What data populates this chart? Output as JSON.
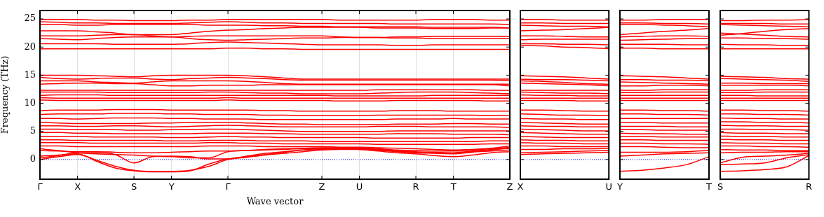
{
  "chart_data": [
    {
      "type": "line",
      "xlabel": "Wave vector",
      "ylabel": "Frequency (THz)",
      "grid": "x",
      "marker": "none",
      "line_style": "solid",
      "categories": [
        "Γ",
        null,
        "X",
        null,
        null,
        "S",
        null,
        "Y",
        null,
        null,
        "Γ",
        null,
        null,
        null,
        null,
        "Z",
        null,
        "U",
        null,
        null,
        "R",
        null,
        "T",
        null,
        null,
        "Z"
      ],
      "ylim": [
        -3.5,
        26.5
      ],
      "yticks": [
        0,
        5,
        10,
        15,
        20,
        25
      ],
      "ref_lines": [
        {
          "axis": "y",
          "value": 0,
          "color": "#0000ff",
          "line_style": "dotted"
        }
      ],
      "series": [
        {
          "color": "#ff0000",
          "values": [
            24.9,
            24.9,
            24.9,
            24.8,
            24.8,
            24.7,
            24.7,
            24.7,
            24.8,
            24.8,
            24.9,
            24.9,
            24.9,
            24.9,
            24.9,
            24.9,
            24.8,
            24.8,
            24.8,
            24.8,
            24.8,
            24.9,
            24.9,
            24.9,
            24.8,
            24.8
          ]
        },
        {
          "color": "#ff0000",
          "values": [
            24.5,
            24.4,
            24.3,
            24.3,
            24.2,
            24.2,
            24.2,
            24.2,
            24.3,
            24.4,
            24.5,
            24.4,
            24.3,
            24.3,
            24.2,
            24.2,
            24.2,
            24.2,
            24.2,
            24.1,
            24.1,
            24.1,
            24.1,
            24.1,
            24.1,
            24.0
          ]
        },
        {
          "color": "#ff0000",
          "values": [
            24.0,
            24.0,
            23.9,
            23.9,
            24.0,
            24.0,
            24.0,
            24.0,
            24.0,
            23.9,
            23.9,
            23.9,
            23.8,
            23.8,
            23.7,
            23.7,
            23.6,
            23.6,
            23.6,
            23.6,
            23.6,
            23.5,
            23.5,
            23.5,
            23.5,
            23.4
          ]
        },
        {
          "color": "#ff0000",
          "values": [
            22.9,
            22.9,
            22.9,
            22.7,
            22.5,
            22.2,
            22.2,
            22.2,
            22.5,
            22.8,
            23.0,
            23.1,
            23.3,
            23.4,
            23.5,
            23.5,
            23.5,
            23.5,
            23.4,
            23.4,
            23.4,
            23.3,
            23.3,
            23.3,
            23.4,
            23.4
          ]
        },
        {
          "color": "#ff0000",
          "values": [
            22.0,
            22.0,
            22.0,
            22.1,
            22.2,
            22.2,
            22.0,
            21.8,
            21.9,
            22.0,
            22.0,
            22.0,
            22.0,
            22.0,
            22.0,
            22.0,
            21.8,
            21.7,
            21.7,
            21.8,
            21.8,
            21.9,
            21.9,
            21.9,
            21.9,
            21.9
          ]
        },
        {
          "color": "#ff0000",
          "values": [
            21.5,
            21.4,
            21.3,
            21.5,
            21.7,
            21.8,
            21.8,
            21.8,
            21.5,
            21.3,
            21.2,
            21.3,
            21.4,
            21.5,
            21.6,
            21.6,
            21.7,
            21.7,
            21.7,
            21.6,
            21.6,
            21.5,
            21.5,
            21.5,
            21.5,
            21.5
          ]
        },
        {
          "color": "#ff0000",
          "values": [
            20.6,
            20.6,
            20.6,
            20.6,
            20.5,
            20.5,
            20.5,
            20.5,
            20.6,
            20.8,
            20.9,
            20.8,
            20.7,
            20.6,
            20.5,
            20.4,
            20.4,
            20.4,
            20.4,
            20.3,
            20.3,
            20.4,
            20.4,
            20.4,
            20.4,
            20.4
          ]
        },
        {
          "color": "#ff0000",
          "values": [
            19.7,
            19.7,
            19.7,
            19.7,
            19.7,
            19.7,
            19.7,
            19.7,
            19.7,
            19.7,
            19.8,
            19.8,
            19.7,
            19.7,
            19.6,
            19.6,
            19.6,
            19.6,
            19.6,
            19.6,
            19.6,
            19.6,
            19.6,
            19.6,
            19.6,
            19.6
          ]
        },
        {
          "color": "#ff0000",
          "values": [
            15.0,
            15.0,
            15.0,
            14.9,
            14.8,
            14.7,
            14.9,
            15.0,
            15.0,
            15.0,
            15.0,
            14.9,
            14.7,
            14.5,
            14.3,
            14.3,
            14.3,
            14.3,
            14.3,
            14.3,
            14.3,
            14.3,
            14.3,
            14.3,
            14.3,
            14.3
          ]
        },
        {
          "color": "#ff0000",
          "values": [
            14.6,
            14.4,
            14.3,
            14.4,
            14.5,
            14.5,
            14.3,
            14.2,
            14.4,
            14.5,
            14.6,
            14.5,
            14.4,
            14.2,
            14.1,
            14.1,
            14.1,
            14.1,
            14.1,
            14.1,
            14.1,
            14.1,
            14.1,
            14.1,
            14.1,
            14.0
          ]
        },
        {
          "color": "#ff0000",
          "values": [
            14.0,
            14.0,
            14.0,
            13.8,
            13.7,
            13.6,
            13.8,
            14.0,
            14.0,
            14.0,
            14.0,
            13.9,
            13.7,
            13.5,
            13.4,
            13.4,
            13.4,
            13.4,
            13.4,
            13.4,
            13.4,
            13.4,
            13.4,
            13.4,
            13.4,
            13.4
          ]
        },
        {
          "color": "#ff0000",
          "values": [
            13.4,
            13.5,
            13.6,
            13.6,
            13.5,
            13.5,
            13.3,
            13.1,
            13.1,
            13.2,
            13.2,
            13.2,
            13.3,
            13.3,
            13.3,
            13.3,
            13.3,
            13.3,
            13.3,
            13.3,
            13.3,
            13.3,
            13.3,
            13.3,
            13.3,
            13.1
          ]
        },
        {
          "color": "#ff0000",
          "values": [
            12.3,
            12.3,
            12.3,
            12.3,
            12.3,
            12.3,
            12.3,
            12.3,
            12.3,
            12.3,
            12.3,
            12.3,
            12.3,
            12.3,
            12.3,
            12.3,
            12.3,
            12.3,
            12.4,
            12.4,
            12.4,
            12.4,
            12.4,
            12.4,
            12.3,
            12.3
          ]
        },
        {
          "color": "#ff0000",
          "values": [
            12.0,
            12.0,
            12.0,
            12.0,
            11.9,
            11.9,
            11.9,
            11.9,
            11.9,
            12.0,
            12.0,
            11.9,
            11.8,
            11.8,
            11.7,
            11.7,
            11.7,
            11.7,
            11.8,
            11.9,
            12.0,
            12.0,
            12.0,
            11.9,
            11.8,
            11.7
          ]
        },
        {
          "color": "#ff0000",
          "values": [
            11.4,
            11.5,
            11.5,
            11.5,
            11.4,
            11.4,
            11.4,
            11.4,
            11.4,
            11.4,
            11.4,
            11.4,
            11.4,
            11.4,
            11.4,
            11.4,
            11.3,
            11.3,
            11.3,
            11.3,
            11.3,
            11.4,
            11.4,
            11.4,
            11.4,
            11.4
          ]
        },
        {
          "color": "#ff0000",
          "values": [
            11.0,
            10.9,
            10.9,
            10.9,
            10.9,
            10.9,
            10.9,
            10.9,
            10.9,
            10.9,
            11.0,
            10.9,
            10.9,
            10.9,
            10.9,
            10.9,
            10.9,
            10.9,
            10.9,
            10.9,
            10.9,
            10.9,
            10.9,
            10.9,
            10.9,
            10.9
          ]
        },
        {
          "color": "#ff0000",
          "values": [
            10.6,
            10.5,
            10.5,
            10.5,
            10.5,
            10.5,
            10.5,
            10.5,
            10.5,
            10.5,
            10.6,
            10.5,
            10.5,
            10.5,
            10.5,
            10.5,
            10.4,
            10.4,
            10.4,
            10.5,
            10.5,
            10.5,
            10.5,
            10.5,
            10.4,
            10.4
          ]
        },
        {
          "color": "#ff0000",
          "values": [
            8.7,
            8.8,
            8.8,
            8.8,
            8.9,
            8.9,
            8.9,
            8.8,
            8.8,
            8.8,
            8.8,
            8.8,
            8.7,
            8.7,
            8.6,
            8.6,
            8.6,
            8.6,
            8.6,
            8.7,
            8.7,
            8.7,
            8.6,
            8.6,
            8.6,
            8.6
          ]
        },
        {
          "color": "#ff0000",
          "values": [
            8.0,
            8.1,
            8.1,
            8.1,
            8.2,
            8.2,
            8.2,
            8.1,
            8.1,
            8.0,
            8.0,
            8.0,
            7.9,
            7.9,
            7.8,
            7.8,
            7.8,
            7.8,
            7.9,
            7.9,
            7.9,
            7.9,
            7.9,
            7.9,
            7.8,
            7.8
          ]
        },
        {
          "color": "#ff0000",
          "values": [
            7.3,
            7.3,
            7.2,
            7.3,
            7.4,
            7.4,
            7.4,
            7.3,
            7.3,
            7.2,
            7.2,
            7.2,
            7.1,
            7.1,
            7.1,
            7.1,
            7.1,
            7.1,
            7.1,
            7.2,
            7.2,
            7.2,
            7.3,
            7.2,
            7.2,
            7.2
          ]
        },
        {
          "color": "#ff0000",
          "values": [
            6.6,
            6.5,
            6.4,
            6.4,
            6.4,
            6.4,
            6.5,
            6.5,
            6.6,
            6.6,
            6.6,
            6.5,
            6.4,
            6.3,
            6.3,
            6.2,
            6.2,
            6.2,
            6.2,
            6.3,
            6.3,
            6.3,
            6.4,
            6.4,
            6.3,
            6.3
          ]
        },
        {
          "color": "#ff0000",
          "values": [
            6.0,
            6.0,
            5.9,
            5.9,
            6.0,
            6.0,
            5.9,
            5.8,
            5.9,
            6.0,
            6.1,
            6.0,
            5.9,
            5.8,
            5.8,
            5.8,
            5.8,
            5.8,
            5.9,
            5.9,
            5.9,
            5.8,
            5.8,
            5.8,
            5.8,
            5.7
          ]
        },
        {
          "color": "#ff0000",
          "values": [
            5.4,
            5.4,
            5.3,
            5.3,
            5.3,
            5.2,
            5.2,
            5.3,
            5.3,
            5.4,
            5.4,
            5.3,
            5.2,
            5.1,
            5.0,
            5.0,
            5.0,
            5.0,
            5.0,
            5.1,
            5.1,
            5.1,
            5.1,
            5.1,
            5.1,
            5.1
          ]
        },
        {
          "color": "#ff0000",
          "values": [
            4.8,
            4.8,
            4.7,
            4.7,
            4.6,
            4.6,
            4.6,
            4.6,
            4.6,
            4.7,
            4.7,
            4.7,
            4.6,
            4.6,
            4.5,
            4.5,
            4.5,
            4.5,
            4.5,
            4.6,
            4.6,
            4.6,
            4.5,
            4.5,
            4.5,
            4.4
          ]
        },
        {
          "color": "#ff0000",
          "values": [
            4.1,
            4.1,
            4.1,
            4.0,
            4.0,
            4.0,
            4.0,
            3.9,
            3.9,
            4.0,
            4.1,
            4.0,
            4.0,
            3.9,
            3.9,
            3.9,
            3.9,
            3.9,
            3.8,
            3.8,
            3.8,
            3.8,
            3.8,
            3.9,
            3.9,
            3.9
          ]
        },
        {
          "color": "#ff0000",
          "values": [
            3.5,
            3.5,
            3.4,
            3.4,
            3.4,
            3.4,
            3.4,
            3.3,
            3.3,
            3.4,
            3.4,
            3.4,
            3.3,
            3.3,
            3.3,
            3.2,
            3.2,
            3.2,
            3.2,
            3.2,
            3.2,
            3.2,
            3.2,
            3.2,
            3.3,
            3.3
          ]
        },
        {
          "color": "#ff0000",
          "values": [
            3.0,
            3.0,
            3.0,
            2.9,
            2.9,
            2.9,
            2.9,
            2.9,
            2.9,
            3.0,
            3.0,
            2.9,
            2.9,
            2.8,
            2.8,
            2.8,
            2.8,
            2.8,
            2.7,
            2.7,
            2.7,
            2.7,
            2.7,
            2.7,
            2.8,
            2.8
          ]
        },
        {
          "color": "#ff0000",
          "values": [
            2.4,
            2.4,
            2.3,
            2.3,
            2.3,
            2.3,
            2.3,
            2.3,
            2.3,
            2.4,
            2.4,
            2.4,
            2.3,
            2.3,
            2.3,
            2.3,
            2.2,
            2.2,
            2.1,
            2.0,
            1.9,
            1.8,
            1.7,
            1.8,
            2.0,
            2.4
          ]
        },
        {
          "color": "#ff0000",
          "values": [
            1.6,
            1.5,
            1.4,
            1.4,
            1.3,
            1.2,
            1.2,
            1.3,
            1.4,
            1.5,
            1.5,
            1.6,
            1.7,
            1.8,
            1.9,
            1.9,
            1.9,
            1.8,
            1.5,
            1.2,
            1.0,
            0.7,
            0.5,
            0.8,
            1.2,
            1.4
          ]
        },
        {
          "color": "#ff0000",
          "values": [
            0,
            0.5,
            0.9,
            -0.1,
            -1.2,
            -1.9,
            -2.1,
            -2.1,
            -1.9,
            -1.2,
            0,
            0.4,
            0.8,
            1.1,
            1.4,
            1.7,
            1.8,
            1.8,
            1.6,
            1.4,
            1.2,
            1.1,
            1.0,
            1.3,
            1.5,
            1.7
          ]
        },
        {
          "color": "#ff0000",
          "values": [
            0.3,
            0.7,
            1.2,
            1.2,
            0.9,
            -0.6,
            0.5,
            0.6,
            0.5,
            0.1,
            0.1,
            0.6,
            1.1,
            1.4,
            1.7,
            1.8,
            1.9,
            1.9,
            1.7,
            1.5,
            1.3,
            1.2,
            1.1,
            1.4,
            1.7,
            2.0
          ]
        },
        {
          "color": "#ff0000",
          "values": [
            0.6,
            0.8,
            1.0,
            -0.3,
            -1.5,
            -2.0,
            -2.2,
            -2.2,
            -2.0,
            -0.8,
            0.1,
            0.5,
            0.9,
            1.3,
            1.7,
            2.0,
            2.0,
            2.0,
            1.8,
            1.6,
            1.4,
            1.3,
            1.2,
            1.5,
            1.8,
            2.2
          ]
        },
        {
          "color": "#ff0000",
          "values": [
            1.9,
            1.6,
            1.2,
            1.0,
            0.9,
            0.8,
            0.6,
            0.5,
            0.3,
            0.3,
            1.4,
            1.6,
            1.8,
            1.9,
            2.0,
            2.1,
            2.1,
            2.1,
            1.9,
            1.7,
            1.6,
            1.5,
            1.5,
            1.7,
            1.9,
            2.0
          ]
        }
      ]
    },
    {
      "type": "line",
      "grid": false,
      "marker": "none",
      "line_style": "solid",
      "tick_labels": "x",
      "categories": [
        "X",
        null,
        null,
        null,
        "U"
      ],
      "ylim": [
        -3.5,
        26.5
      ],
      "yticks": [
        0,
        5,
        10,
        15,
        20,
        25
      ],
      "ref_lines": [
        {
          "axis": "y",
          "value": 0,
          "color": "#0000ff",
          "line_style": "dotted"
        }
      ],
      "series": [
        {
          "color": "#ff0000",
          "values": [
            24.9,
            24.9,
            24.8,
            24.8,
            24.8
          ]
        },
        {
          "color": "#ff0000",
          "values": [
            24.3,
            24.3,
            24.2,
            24.2,
            24.2
          ]
        },
        {
          "color": "#ff0000",
          "values": [
            23.9,
            23.8,
            23.7,
            23.7,
            23.6
          ]
        },
        {
          "color": "#ff0000",
          "values": [
            22.9,
            23.0,
            23.1,
            23.3,
            23.5
          ]
        },
        {
          "color": "#ff0000",
          "values": [
            22.0,
            22.0,
            21.9,
            21.8,
            21.8
          ]
        },
        {
          "color": "#ff0000",
          "values": [
            21.3,
            21.4,
            21.4,
            21.4,
            21.4
          ]
        },
        {
          "color": "#ff0000",
          "values": [
            20.6,
            20.6,
            20.5,
            20.5,
            20.4
          ]
        },
        {
          "color": "#ff0000",
          "values": [
            20.3,
            20.2,
            20.0,
            19.9,
            19.7
          ]
        },
        {
          "color": "#ff0000",
          "values": [
            14.9,
            14.8,
            14.7,
            14.5,
            14.3
          ]
        },
        {
          "color": "#ff0000",
          "values": [
            14.3,
            14.2,
            14.2,
            14.1,
            14.0
          ]
        },
        {
          "color": "#ff0000",
          "values": [
            14.0,
            13.9,
            13.7,
            13.5,
            13.4
          ]
        },
        {
          "color": "#ff0000",
          "values": [
            13.6,
            13.5,
            13.4,
            13.3,
            13.1
          ]
        },
        {
          "color": "#ff0000",
          "values": [
            12.3,
            12.3,
            12.3,
            12.3,
            12.3
          ]
        },
        {
          "color": "#ff0000",
          "values": [
            12.0,
            11.9,
            11.8,
            11.8,
            11.7
          ]
        },
        {
          "color": "#ff0000",
          "values": [
            11.5,
            11.4,
            11.4,
            11.3,
            11.3
          ]
        },
        {
          "color": "#ff0000",
          "values": [
            10.9,
            10.9,
            10.9,
            10.9,
            10.9
          ]
        },
        {
          "color": "#ff0000",
          "values": [
            10.5,
            10.5,
            10.5,
            10.4,
            10.4
          ]
        },
        {
          "color": "#ff0000",
          "values": [
            8.8,
            8.8,
            8.7,
            8.6,
            8.6
          ]
        },
        {
          "color": "#ff0000",
          "values": [
            8.1,
            8.0,
            7.9,
            7.9,
            7.8
          ]
        },
        {
          "color": "#ff0000",
          "values": [
            7.3,
            7.2,
            7.2,
            7.1,
            7.1
          ]
        },
        {
          "color": "#ff0000",
          "values": [
            6.6,
            6.5,
            6.4,
            6.3,
            6.3
          ]
        },
        {
          "color": "#ff0000",
          "values": [
            6.0,
            5.9,
            5.9,
            5.8,
            5.8
          ]
        },
        {
          "color": "#ff0000",
          "values": [
            5.4,
            5.3,
            5.2,
            5.1,
            5.1
          ]
        },
        {
          "color": "#ff0000",
          "values": [
            4.8,
            4.7,
            4.6,
            4.5,
            4.5
          ]
        },
        {
          "color": "#ff0000",
          "values": [
            4.1,
            4.0,
            3.9,
            3.9,
            3.9
          ]
        },
        {
          "color": "#ff0000",
          "values": [
            3.5,
            3.4,
            3.4,
            3.3,
            3.3
          ]
        },
        {
          "color": "#ff0000",
          "values": [
            3.0,
            2.9,
            2.9,
            2.8,
            2.8
          ]
        },
        {
          "color": "#ff0000",
          "values": [
            2.4,
            2.4,
            2.3,
            2.3,
            2.3
          ]
        },
        {
          "color": "#ff0000",
          "values": [
            1.8,
            1.8,
            1.9,
            1.9,
            2.0
          ]
        },
        {
          "color": "#ff0000",
          "values": [
            1.2,
            1.3,
            1.4,
            1.5,
            1.6
          ]
        },
        {
          "color": "#ff0000",
          "values": [
            0.9,
            1.0,
            1.1,
            1.2,
            1.3
          ]
        }
      ]
    },
    {
      "type": "line",
      "grid": false,
      "marker": "none",
      "line_style": "solid",
      "tick_labels": "x",
      "categories": [
        "Y",
        null,
        null,
        null,
        "T"
      ],
      "ylim": [
        -3.5,
        26.5
      ],
      "yticks": [
        0,
        5,
        10,
        15,
        20,
        25
      ],
      "ref_lines": [
        {
          "axis": "y",
          "value": 0,
          "color": "#0000ff",
          "line_style": "dotted"
        }
      ],
      "series": [
        {
          "color": "#ff0000",
          "values": [
            24.8,
            24.8,
            24.9,
            24.9,
            24.9
          ]
        },
        {
          "color": "#ff0000",
          "values": [
            24.3,
            24.3,
            24.2,
            24.2,
            24.1
          ]
        },
        {
          "color": "#ff0000",
          "values": [
            24.0,
            24.0,
            23.9,
            23.8,
            23.6
          ]
        },
        {
          "color": "#ff0000",
          "values": [
            22.2,
            22.5,
            22.8,
            23.0,
            23.3
          ]
        },
        {
          "color": "#ff0000",
          "values": [
            21.8,
            21.9,
            22.0,
            22.0,
            21.9
          ]
        },
        {
          "color": "#ff0000",
          "values": [
            21.2,
            21.3,
            21.4,
            21.5,
            21.5
          ]
        },
        {
          "color": "#ff0000",
          "values": [
            20.5,
            20.5,
            20.5,
            20.4,
            20.4
          ]
        },
        {
          "color": "#ff0000",
          "values": [
            19.8,
            19.8,
            19.7,
            19.7,
            19.7
          ]
        },
        {
          "color": "#ff0000",
          "values": [
            14.9,
            14.8,
            14.7,
            14.5,
            14.3
          ]
        },
        {
          "color": "#ff0000",
          "values": [
            14.2,
            14.2,
            14.1,
            14.1,
            14.0
          ]
        },
        {
          "color": "#ff0000",
          "values": [
            13.8,
            13.7,
            13.6,
            13.5,
            13.4
          ]
        },
        {
          "color": "#ff0000",
          "values": [
            13.1,
            13.1,
            13.2,
            13.2,
            13.1
          ]
        },
        {
          "color": "#ff0000",
          "values": [
            12.3,
            12.3,
            12.4,
            12.4,
            12.4
          ]
        },
        {
          "color": "#ff0000",
          "values": [
            11.9,
            11.9,
            12.0,
            12.0,
            12.0
          ]
        },
        {
          "color": "#ff0000",
          "values": [
            11.4,
            11.4,
            11.4,
            11.4,
            11.4
          ]
        },
        {
          "color": "#ff0000",
          "values": [
            10.9,
            10.9,
            10.9,
            10.9,
            10.9
          ]
        },
        {
          "color": "#ff0000",
          "values": [
            10.5,
            10.5,
            10.5,
            10.5,
            10.5
          ]
        },
        {
          "color": "#ff0000",
          "values": [
            8.8,
            8.8,
            8.7,
            8.7,
            8.6
          ]
        },
        {
          "color": "#ff0000",
          "values": [
            8.1,
            8.1,
            8.0,
            8.0,
            7.9
          ]
        },
        {
          "color": "#ff0000",
          "values": [
            7.3,
            7.3,
            7.3,
            7.3,
            7.3
          ]
        },
        {
          "color": "#ff0000",
          "values": [
            6.6,
            6.6,
            6.5,
            6.5,
            6.5
          ]
        },
        {
          "color": "#ff0000",
          "values": [
            5.9,
            5.9,
            5.9,
            5.8,
            5.8
          ]
        },
        {
          "color": "#ff0000",
          "values": [
            5.3,
            5.3,
            5.2,
            5.2,
            5.2
          ]
        },
        {
          "color": "#ff0000",
          "values": [
            4.7,
            4.6,
            4.6,
            4.5,
            4.5
          ]
        },
        {
          "color": "#ff0000",
          "values": [
            4.1,
            4.1,
            4.0,
            4.0,
            4.0
          ]
        },
        {
          "color": "#ff0000",
          "values": [
            3.5,
            3.5,
            3.4,
            3.4,
            3.4
          ]
        },
        {
          "color": "#ff0000",
          "values": [
            2.9,
            2.9,
            2.8,
            2.8,
            2.7
          ]
        },
        {
          "color": "#ff0000",
          "values": [
            2.3,
            2.3,
            2.2,
            2.1,
            2.1
          ]
        },
        {
          "color": "#ff0000",
          "values": [
            1.3,
            1.3,
            1.3,
            1.4,
            1.6
          ]
        },
        {
          "color": "#ff0000",
          "values": [
            0.6,
            0.8,
            1.0,
            1.1,
            1.2
          ]
        },
        {
          "color": "#ff0000",
          "values": [
            -2.1,
            -1.9,
            -1.5,
            -0.9,
            0.5
          ]
        }
      ]
    },
    {
      "type": "line",
      "grid": false,
      "marker": "none",
      "line_style": "solid",
      "tick_labels": "x",
      "categories": [
        "S",
        null,
        null,
        null,
        "R"
      ],
      "ylim": [
        -3.5,
        26.5
      ],
      "yticks": [
        0,
        5,
        10,
        15,
        20,
        25
      ],
      "ref_lines": [
        {
          "axis": "y",
          "value": 0,
          "color": "#0000ff",
          "line_style": "dotted"
        }
      ],
      "series": [
        {
          "color": "#ff0000",
          "values": [
            24.7,
            24.7,
            24.8,
            24.8,
            24.9
          ]
        },
        {
          "color": "#ff0000",
          "values": [
            24.2,
            24.2,
            24.2,
            24.1,
            24.1
          ]
        },
        {
          "color": "#ff0000",
          "values": [
            24.0,
            23.9,
            23.8,
            23.7,
            23.6
          ]
        },
        {
          "color": "#ff0000",
          "values": [
            22.1,
            22.4,
            22.8,
            23.1,
            23.3
          ]
        },
        {
          "color": "#ff0000",
          "values": [
            22.5,
            22.3,
            22.1,
            21.9,
            21.8
          ]
        },
        {
          "color": "#ff0000",
          "values": [
            21.6,
            21.6,
            21.5,
            21.5,
            21.4
          ]
        },
        {
          "color": "#ff0000",
          "values": [
            20.5,
            20.4,
            20.4,
            20.3,
            20.3
          ]
        },
        {
          "color": "#ff0000",
          "values": [
            19.7,
            19.7,
            19.7,
            19.7,
            19.7
          ]
        },
        {
          "color": "#ff0000",
          "values": [
            14.8,
            14.7,
            14.6,
            14.4,
            14.3
          ]
        },
        {
          "color": "#ff0000",
          "values": [
            14.4,
            14.3,
            14.2,
            14.1,
            13.9
          ]
        },
        {
          "color": "#ff0000",
          "values": [
            13.6,
            13.6,
            13.5,
            13.5,
            13.5
          ]
        },
        {
          "color": "#ff0000",
          "values": [
            13.2,
            13.2,
            13.2,
            13.2,
            13.1
          ]
        },
        {
          "color": "#ff0000",
          "values": [
            12.3,
            12.3,
            12.4,
            12.4,
            12.4
          ]
        },
        {
          "color": "#ff0000",
          "values": [
            11.9,
            11.9,
            12.0,
            12.0,
            12.0
          ]
        },
        {
          "color": "#ff0000",
          "values": [
            11.4,
            11.4,
            11.3,
            11.3,
            11.3
          ]
        },
        {
          "color": "#ff0000",
          "values": [
            10.9,
            10.9,
            10.9,
            10.9,
            10.9
          ]
        },
        {
          "color": "#ff0000",
          "values": [
            10.5,
            10.5,
            10.5,
            10.5,
            10.5
          ]
        },
        {
          "color": "#ff0000",
          "values": [
            8.8,
            8.8,
            8.7,
            8.7,
            8.6
          ]
        },
        {
          "color": "#ff0000",
          "values": [
            8.1,
            8.1,
            8.0,
            8.0,
            7.9
          ]
        },
        {
          "color": "#ff0000",
          "values": [
            7.4,
            7.3,
            7.3,
            7.2,
            7.2
          ]
        },
        {
          "color": "#ff0000",
          "values": [
            6.7,
            6.7,
            6.6,
            6.6,
            6.5
          ]
        },
        {
          "color": "#ff0000",
          "values": [
            6.1,
            6.0,
            6.0,
            5.9,
            5.9
          ]
        },
        {
          "color": "#ff0000",
          "values": [
            5.4,
            5.4,
            5.3,
            5.3,
            5.2
          ]
        },
        {
          "color": "#ff0000",
          "values": [
            4.8,
            4.7,
            4.7,
            4.6,
            4.6
          ]
        },
        {
          "color": "#ff0000",
          "values": [
            4.2,
            4.1,
            4.1,
            4.0,
            4.0
          ]
        },
        {
          "color": "#ff0000",
          "values": [
            3.6,
            3.5,
            3.5,
            3.4,
            3.4
          ]
        },
        {
          "color": "#ff0000",
          "values": [
            3.0,
            2.9,
            2.9,
            2.8,
            2.8
          ]
        },
        {
          "color": "#ff0000",
          "values": [
            2.4,
            2.4,
            2.3,
            2.3,
            2.2
          ]
        },
        {
          "color": "#ff0000",
          "values": [
            1.8,
            1.7,
            1.7,
            1.6,
            1.6
          ]
        },
        {
          "color": "#ff0000",
          "values": [
            1.2,
            1.3,
            1.3,
            1.4,
            1.4
          ]
        },
        {
          "color": "#ff0000",
          "values": [
            -2.1,
            -2.0,
            -1.8,
            -1.3,
            0.7
          ]
        },
        {
          "color": "#ff0000",
          "values": [
            -0.6,
            0.4,
            0.6,
            0.8,
            1.1
          ]
        },
        {
          "color": "#ff0000",
          "values": [
            -0.9,
            -0.8,
            -0.6,
            0.3,
            0.9
          ]
        }
      ]
    }
  ]
}
